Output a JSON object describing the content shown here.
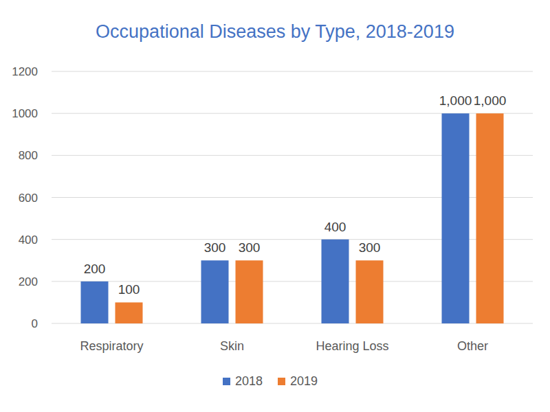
{
  "chart_data": {
    "type": "bar",
    "title": "Occupational Diseases by Type, 2018-2019",
    "categories": [
      "Respiratory",
      "Skin",
      "Hearing Loss",
      "Other"
    ],
    "series": [
      {
        "name": "2018",
        "color": "#4472c4",
        "values": [
          200,
          300,
          400,
          1000
        ],
        "value_labels": [
          "200",
          "300",
          "400",
          "1,000"
        ]
      },
      {
        "name": "2019",
        "color": "#ed7d31",
        "values": [
          100,
          300,
          300,
          1000
        ],
        "value_labels": [
          "100",
          "300",
          "300",
          "1,000"
        ]
      }
    ],
    "ylim": [
      0,
      1200
    ],
    "yticks": [
      0,
      200,
      400,
      600,
      800,
      1000,
      1200
    ],
    "grid": true,
    "legend": "bottom",
    "data_labels": true
  }
}
